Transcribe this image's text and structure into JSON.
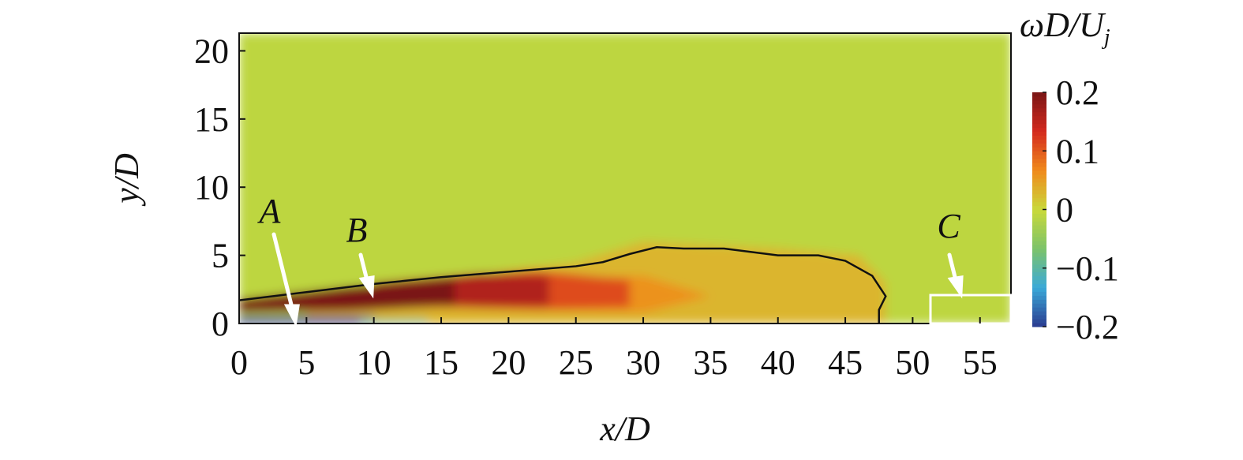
{
  "chart_data": {
    "type": "contour",
    "xlabel": "x/D",
    "ylabel": "y/D",
    "colorbar_label": "ωD/U",
    "colorbar_label_sub": "j",
    "xlim": [
      0,
      57.3
    ],
    "ylim": [
      0,
      21.3
    ],
    "xticks": [
      0,
      5,
      10,
      15,
      20,
      25,
      30,
      35,
      40,
      45,
      50,
      55
    ],
    "yticks": [
      0,
      5,
      10,
      15,
      20
    ],
    "clim": [
      -0.2,
      0.2
    ],
    "cticks": [
      {
        "value": 0.2,
        "label": "0.2"
      },
      {
        "value": 0.1,
        "label": "0.1"
      },
      0,
      {
        "value": -0.1,
        "label": "−0.1"
      },
      {
        "value": -0.2,
        "label": "−0.2"
      }
    ],
    "colormap": [
      "#2a3a8f",
      "#3aa9d8",
      "#7cc36a",
      "#c9d93a",
      "#f08a1c",
      "#d42a1e",
      "#7a1616"
    ],
    "regions": [
      {
        "value": -0.01,
        "x": [
          0,
          57.3,
          57.3,
          0
        ],
        "y": [
          0,
          0,
          21.3,
          21.3
        ]
      },
      {
        "value": 0.03,
        "x": [
          5,
          25,
          30,
          40,
          46,
          48,
          48,
          5
        ],
        "y": [
          2,
          4.5,
          6,
          5.5,
          5,
          3,
          0,
          0
        ]
      },
      {
        "value": 0.06,
        "x": [
          10,
          30,
          35,
          30,
          10
        ],
        "y": [
          3,
          3.5,
          2,
          0.8,
          1.2
        ]
      },
      {
        "value": 0.11,
        "x": [
          12,
          22,
          29,
          29,
          22,
          12
        ],
        "y": [
          3.2,
          3.9,
          3.2,
          1.2,
          1.0,
          1.4
        ]
      },
      {
        "value": 0.16,
        "x": [
          10,
          18,
          23,
          23,
          18,
          10
        ],
        "y": [
          3,
          3.7,
          3.5,
          1.3,
          1.2,
          1.3
        ]
      },
      {
        "value": 0.2,
        "x": [
          0,
          8,
          16,
          16,
          8,
          0
        ],
        "y": [
          1.8,
          2.7,
          3.3,
          1.3,
          0.9,
          0.8
        ]
      },
      {
        "value": -0.2,
        "x": [
          0,
          10,
          10,
          0
        ],
        "y": [
          0,
          0,
          0.5,
          0.5
        ]
      },
      {
        "value": -0.09,
        "x": [
          9,
          14,
          14,
          9
        ],
        "y": [
          0,
          0,
          0.3,
          0.3
        ]
      }
    ],
    "contour": {
      "x": [
        0,
        5,
        10,
        15,
        20,
        25,
        27,
        29,
        31,
        33,
        36,
        40,
        43,
        45,
        47,
        48,
        47.5,
        47.5
      ],
      "y": [
        1.7,
        2.3,
        2.9,
        3.4,
        3.8,
        4.2,
        4.5,
        5.1,
        5.6,
        5.5,
        5.5,
        5.0,
        5.0,
        4.6,
        3.5,
        2.0,
        1.0,
        0
      ]
    },
    "annotations": [
      {
        "text": "A"
      },
      {
        "text": "B"
      },
      {
        "text": "C"
      }
    ]
  }
}
